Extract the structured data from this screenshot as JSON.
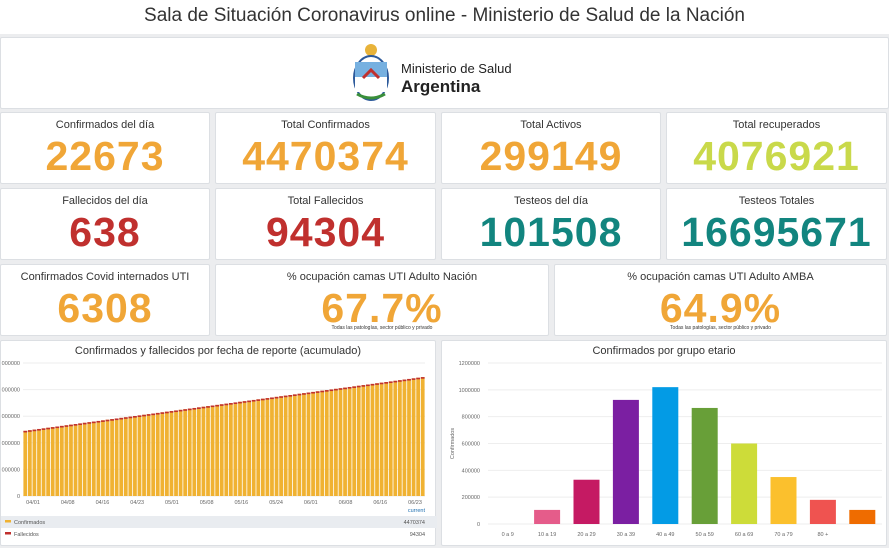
{
  "header": {
    "title": "Sala de Situación Coronavirus online - Ministerio de Salud de la Nación"
  },
  "logo": {
    "line1": "Ministerio de Salud",
    "line2": "Argentina"
  },
  "stats": {
    "confirmados_dia": {
      "label": "Confirmados del día",
      "value": "22673",
      "color": "#f0a637"
    },
    "total_confirmados": {
      "label": "Total Confirmados",
      "value": "4470374",
      "color": "#f0a637"
    },
    "total_activos": {
      "label": "Total Activos",
      "value": "299149",
      "color": "#f0a637"
    },
    "total_recuperados": {
      "label": "Total recuperados",
      "value": "4076921",
      "color": "#c9d94a"
    },
    "fallecidos_dia": {
      "label": "Fallecidos del día",
      "value": "638",
      "color": "#c0302e"
    },
    "total_fallecidos": {
      "label": "Total Fallecidos",
      "value": "94304",
      "color": "#c0302e"
    },
    "testeos_dia": {
      "label": "Testeos del día",
      "value": "101508",
      "color": "#12857f"
    },
    "testeos_totales": {
      "label": "Testeos Totales",
      "value": "16695671",
      "color": "#12857f"
    },
    "internados_uti": {
      "label": "Confirmados Covid internados UTI",
      "value": "6308",
      "color": "#f0a637"
    },
    "ocupacion_nacion": {
      "label": "% ocupación camas UTI Adulto Nación",
      "value": "67.7%",
      "note": "Todas las patologías, sector público y privado",
      "color": "#f0a637"
    },
    "ocupacion_amba": {
      "label": "% ocupación camas UTI Adulto AMBA",
      "value": "64.9%",
      "note": "Todas las patologías, sector público y privado",
      "color": "#f0a637"
    }
  },
  "chart_data": [
    {
      "type": "bar",
      "title": "Confirmados y fallecidos por fecha de reporte (acumulado)",
      "x_ticks": [
        "04/01",
        "04/08",
        "04/16",
        "04/23",
        "05/01",
        "05/08",
        "05/16",
        "05/24",
        "06/01",
        "06/08",
        "06/16",
        "06/23"
      ],
      "y_ticks": [
        "0",
        "000000",
        "000000",
        "000000",
        "000000",
        "000000"
      ],
      "legend_header": "current",
      "series": [
        {
          "name": "Confirmados",
          "current": "4470374",
          "color": "#f0b232",
          "start": 2450000,
          "end": 4470000
        },
        {
          "name": "Fallecidos",
          "current": "94304",
          "color": "#c0302e",
          "start": 54000,
          "end": 94304
        }
      ],
      "ymax": 5000000
    },
    {
      "type": "bar",
      "title": "Confirmados por grupo etario",
      "ylabel": "Confirmados",
      "categories": [
        "0 a 9",
        "10 a 19",
        "20 a 29",
        "30 a 39",
        "40 a 49",
        "50 a 59",
        "60 a 69",
        "70 a 79",
        "80 +",
        ""
      ],
      "values": [
        0,
        105000,
        330000,
        925000,
        1020000,
        865000,
        600000,
        350000,
        180000,
        105000
      ],
      "colors": [
        "#888888",
        "#e55c8a",
        "#c51a63",
        "#7b1fa2",
        "#039be5",
        "#689f38",
        "#cddc39",
        "#fbc02d",
        "#ef5350",
        "#ef6c00"
      ],
      "y_ticks": [
        "0",
        "200000",
        "400000",
        "600000",
        "800000",
        "1000000",
        "1200000"
      ],
      "ymax": 1200000
    }
  ]
}
